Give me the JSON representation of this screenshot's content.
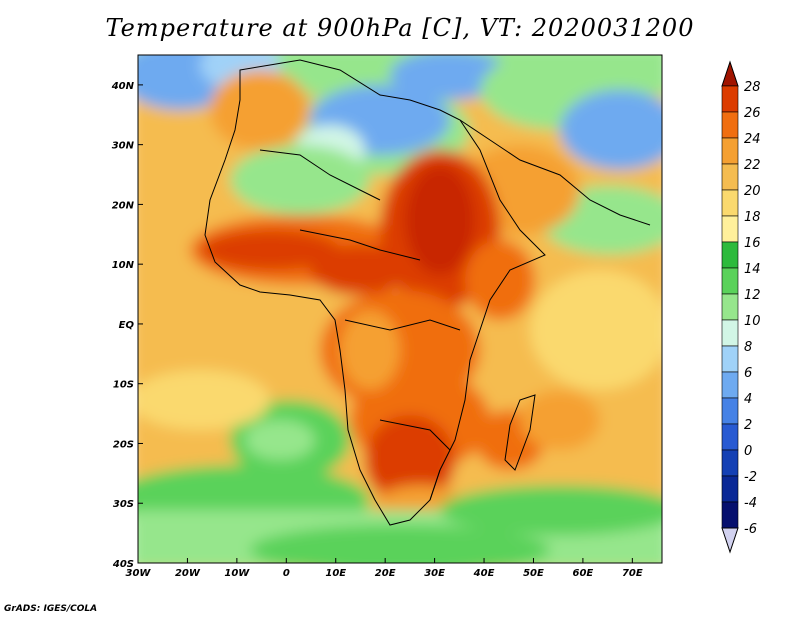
{
  "title": "Temperature at 900hPa [C], VT: 2020031200",
  "credit": "GrADS: IGES/COLA",
  "map": {
    "lon_range": [
      -30,
      76
    ],
    "lat_range": [
      -40,
      45
    ],
    "lon_ticks": [
      "30W",
      "20W",
      "10W",
      "0",
      "10E",
      "20E",
      "30E",
      "40E",
      "50E",
      "60E",
      "70E"
    ],
    "lat_ticks": [
      "40S",
      "30S",
      "20S",
      "10S",
      "EQ",
      "10N",
      "20N",
      "30N",
      "40N"
    ]
  },
  "colorbar": {
    "labels": [
      "28",
      "26",
      "24",
      "22",
      "20",
      "18",
      "16",
      "14",
      "12",
      "10",
      "8",
      "6",
      "4",
      "2",
      "0",
      "-2",
      "-4",
      "-6"
    ],
    "colors": [
      "#a01400",
      "#dc3c00",
      "#f06e10",
      "#f5a032",
      "#f5bc50",
      "#fad96e",
      "#fff09b",
      "#2dba3c",
      "#5ad25a",
      "#96e68c",
      "#d2f6e6",
      "#a0d2f8",
      "#6eaaf0",
      "#4682e6",
      "#285ad2",
      "#1440b4",
      "#0a2896",
      "#06106e",
      "#d2d2f0"
    ]
  }
}
